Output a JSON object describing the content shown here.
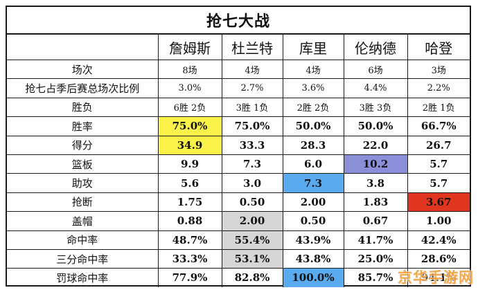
{
  "title": "抢七大战",
  "players": [
    "詹姆斯",
    "杜兰特",
    "库里",
    "伦纳德",
    "哈登"
  ],
  "rows": [
    {
      "label": "场次",
      "values": [
        "8场",
        "4场",
        "4场",
        "6场",
        "3场"
      ],
      "small": true
    },
    {
      "label": "抢七占季后赛总场次比例",
      "values": [
        "3.0%",
        "2.7%",
        "3.6%",
        "4.4%",
        "2.2%"
      ],
      "small": true
    },
    {
      "label": "胜负",
      "values": [
        "6胜 2负",
        "3胜 1负",
        "2胜 2负",
        "3胜 3负",
        "2胜 1负"
      ],
      "small": true
    },
    {
      "label": "胜率",
      "values": [
        "75.0%",
        "75.0%",
        "50.0%",
        "50.0%",
        "66.7%"
      ]
    },
    {
      "label": "得分",
      "values": [
        "34.9",
        "33.3",
        "28.3",
        "22.0",
        "26.7"
      ]
    },
    {
      "label": "篮板",
      "values": [
        "9.9",
        "7.3",
        "6.0",
        "10.2",
        "5.7"
      ]
    },
    {
      "label": "助攻",
      "values": [
        "5.6",
        "3.0",
        "7.3",
        "3.8",
        "5.7"
      ]
    },
    {
      "label": "抢断",
      "values": [
        "1.75",
        "0.50",
        "2.00",
        "1.83",
        "3.67"
      ]
    },
    {
      "label": "盖帽",
      "values": [
        "0.88",
        "2.00",
        "0.50",
        "0.67",
        "1.00"
      ]
    },
    {
      "label": "命中率",
      "values": [
        "48.7%",
        "55.4%",
        "43.9%",
        "41.7%",
        "42.4%"
      ]
    },
    {
      "label": "三分命中率",
      "values": [
        "33.3%",
        "53.1%",
        "43.8%",
        "25.0%",
        "28.6%"
      ]
    },
    {
      "label": "罚球命中率",
      "values": [
        "77.9%",
        "82.8%",
        "100.0%",
        "85.7%",
        "94.1%"
      ]
    }
  ],
  "highlights": {
    "yellow": "#fbf34a",
    "purple": "#8a8fd8",
    "blue": "#5aaaf0",
    "red": "#e0351f",
    "gray": "#d6d6d6"
  },
  "watermark": "京华手游网"
}
